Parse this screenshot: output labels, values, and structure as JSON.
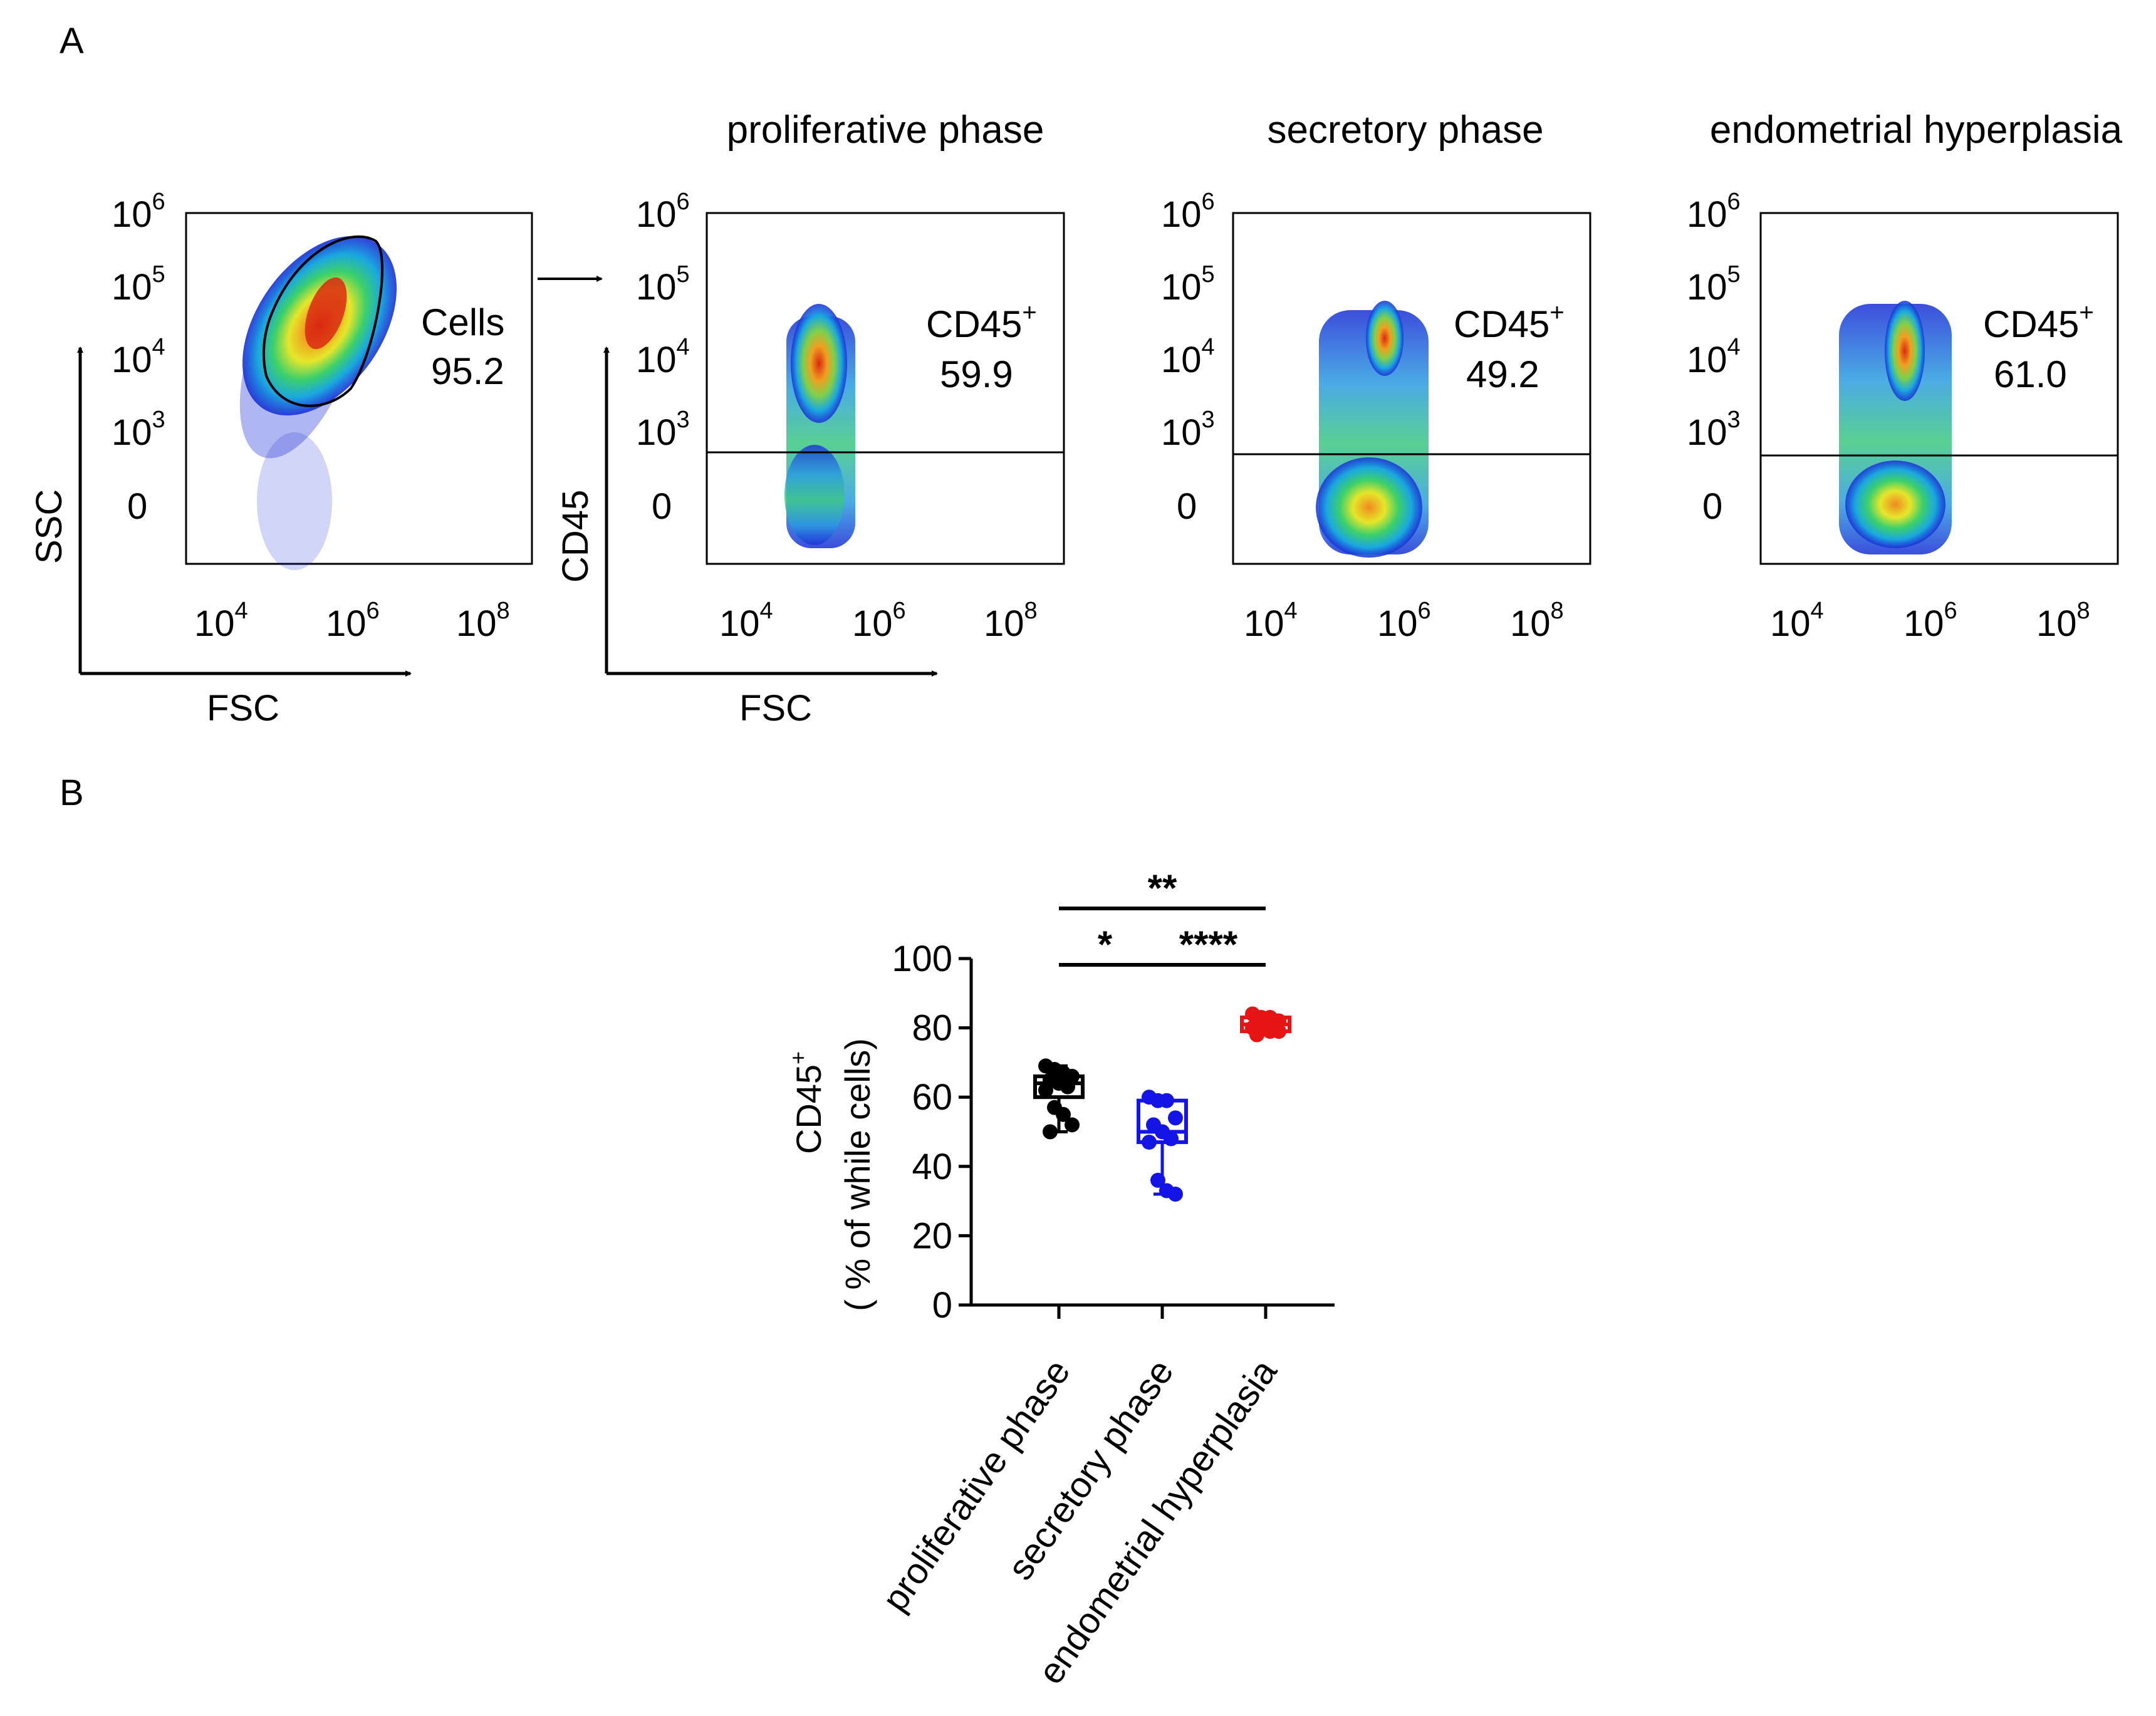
{
  "panel_labels": {
    "a": "A",
    "b": "B"
  },
  "colors": {
    "proliferative": "#000000",
    "secretory": "#1414e6",
    "hyperplasia": "#e61414",
    "density_low": "#1a2fd6",
    "density_high": "#d92a12"
  },
  "flow": {
    "gate_plot": {
      "gate_name": "Cells",
      "gate_value": "95.2",
      "x_axis_label": "FSC",
      "y_axis_label": "SSC",
      "y_ticks": [
        {
          "base": "10",
          "exp": "6"
        },
        {
          "base": "10",
          "exp": "5"
        },
        {
          "base": "10",
          "exp": "4"
        },
        {
          "base": "10",
          "exp": "3"
        },
        {
          "base": "0",
          "exp": ""
        }
      ],
      "x_ticks": [
        {
          "base": "10",
          "exp": "4"
        },
        {
          "base": "10",
          "exp": "6"
        },
        {
          "base": "10",
          "exp": "8"
        }
      ]
    },
    "cd45_plots": [
      {
        "title": "proliferative phase",
        "gate_label": "CD45",
        "gate_sup": "+",
        "gate_value": "59.9"
      },
      {
        "title": "secretory phase",
        "gate_label": "CD45",
        "gate_sup": "+",
        "gate_value": "49.2"
      },
      {
        "title": "endometrial hyperplasia",
        "gate_label": "CD45",
        "gate_sup": "+",
        "gate_value": "61.0"
      }
    ],
    "cd45_axes": {
      "x_axis_label": "FSC",
      "y_axis_label": "CD45"
    }
  },
  "chart_data": {
    "type": "box",
    "title": "",
    "ylabel_line1": "CD45",
    "ylabel_sup": "+",
    "ylabel_line2": "( % of while cells)",
    "ylim": [
      0,
      100
    ],
    "yticks": [
      0,
      20,
      40,
      60,
      80,
      100
    ],
    "categories": [
      "proliferative phase",
      "secretory phase",
      "endometrial hyperplasia"
    ],
    "series": [
      {
        "name": "proliferative phase",
        "color": "#000000",
        "min": 50,
        "q1": 60,
        "median": 64,
        "q3": 66,
        "max": 69,
        "points": [
          69,
          68,
          67,
          66,
          65,
          64,
          63,
          62,
          57,
          55,
          52,
          50
        ]
      },
      {
        "name": "secretory phase",
        "color": "#1414e6",
        "min": 32,
        "q1": 47,
        "median": 50,
        "q3": 59,
        "max": 60,
        "points": [
          60,
          59,
          59,
          54,
          52,
          50,
          48,
          47,
          36,
          33,
          32
        ]
      },
      {
        "name": "endometrial hyperplasia",
        "color": "#e61414",
        "min": 78,
        "q1": 79,
        "median": 81,
        "q3": 83,
        "max": 84,
        "points": [
          84,
          83,
          83,
          82,
          82,
          81,
          81,
          80,
          80,
          79,
          79,
          78
        ]
      }
    ],
    "significance": [
      {
        "from": 0,
        "to": 2,
        "label": "**"
      },
      {
        "from": 0,
        "to": 1,
        "label": "*"
      },
      {
        "from": 1,
        "to": 2,
        "label": "****"
      }
    ]
  }
}
